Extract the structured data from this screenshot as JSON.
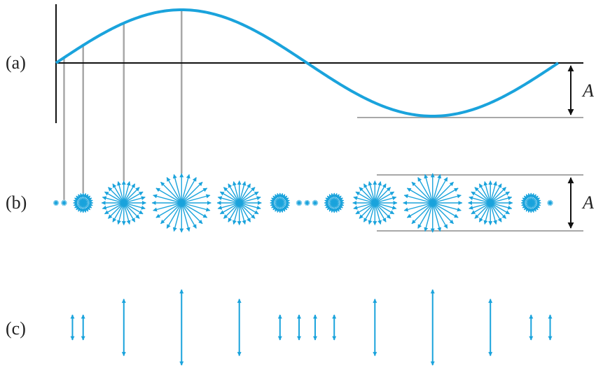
{
  "labels": {
    "a": "(a)",
    "b": "(b)",
    "c": "(c)",
    "amplitude_a": "A",
    "amplitude_b": "A"
  },
  "colors": {
    "wave": "#1aa3dc",
    "axis": "#111111",
    "guide": "#a8a8a8",
    "text": "#222222"
  },
  "wave": {
    "cycles": 1,
    "sample_phases": [
      0.0,
      0.016,
      0.054,
      0.135,
      0.25,
      0.365,
      0.446,
      0.484,
      0.5,
      0.516,
      0.554,
      0.635,
      0.75,
      0.865,
      0.946,
      0.984
    ]
  }
}
